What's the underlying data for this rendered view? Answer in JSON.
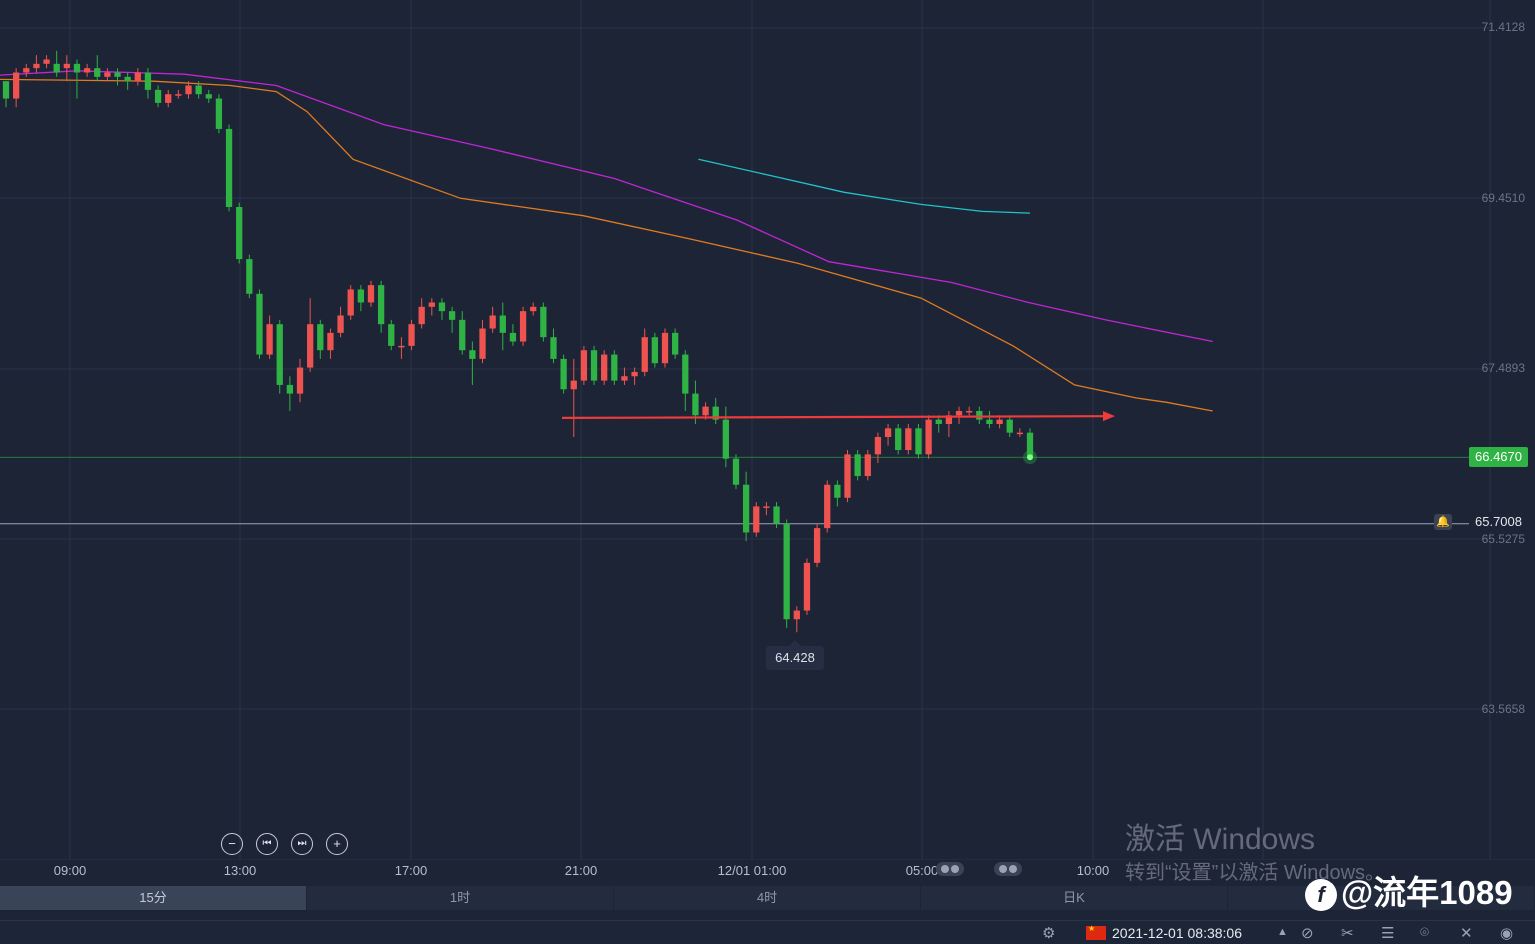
{
  "chart_data": {
    "type": "candlestick",
    "timeframe_active": "15分",
    "y_ticks": [
      "71.4128",
      "69.4510",
      "67.4893",
      "65.5275",
      "63.5658"
    ],
    "x_ticks": [
      "09:00",
      "13:00",
      "17:00",
      "21:00",
      "12/01 01:00",
      "05:00",
      "10:00"
    ],
    "current_price": "66.4670",
    "alert_price": "65.7008",
    "low_label": "64.428",
    "colors": {
      "up": "#ef5350",
      "down": "#26a69a",
      "green": "#2fb344",
      "ma_orange": "#e07b20",
      "ma_magenta": "#c026d3",
      "ma_cyan": "#22c3c9",
      "resistance": "#ef3b3b"
    },
    "candles": [
      [
        70.8,
        70.8,
        70.5,
        70.6
      ],
      [
        70.6,
        70.95,
        70.5,
        70.9
      ],
      [
        70.9,
        71.0,
        70.85,
        70.95
      ],
      [
        70.95,
        71.1,
        70.9,
        71.0
      ],
      [
        71.0,
        71.1,
        70.95,
        71.05
      ],
      [
        71.0,
        71.15,
        70.85,
        70.9
      ],
      [
        70.95,
        71.1,
        70.8,
        71.0
      ],
      [
        71.0,
        71.05,
        70.6,
        70.9
      ],
      [
        70.9,
        71.0,
        70.85,
        70.95
      ],
      [
        70.95,
        71.1,
        70.8,
        70.85
      ],
      [
        70.85,
        70.95,
        70.8,
        70.9
      ],
      [
        70.9,
        70.95,
        70.75,
        70.85
      ],
      [
        70.85,
        70.9,
        70.7,
        70.8
      ],
      [
        70.8,
        70.95,
        70.75,
        70.9
      ],
      [
        70.9,
        70.95,
        70.6,
        70.7
      ],
      [
        70.7,
        70.75,
        70.5,
        70.55
      ],
      [
        70.55,
        70.7,
        70.5,
        70.65
      ],
      [
        70.65,
        70.7,
        70.6,
        70.65
      ],
      [
        70.65,
        70.8,
        70.6,
        70.75
      ],
      [
        70.75,
        70.8,
        70.6,
        70.65
      ],
      [
        70.65,
        70.7,
        70.55,
        70.6
      ],
      [
        70.6,
        70.65,
        70.2,
        70.25
      ],
      [
        70.25,
        70.3,
        69.3,
        69.35
      ],
      [
        69.35,
        69.4,
        68.7,
        68.75
      ],
      [
        68.75,
        68.8,
        68.3,
        68.35
      ],
      [
        68.35,
        68.4,
        67.6,
        67.65
      ],
      [
        67.65,
        68.1,
        67.6,
        68.0
      ],
      [
        68.0,
        68.05,
        67.2,
        67.3
      ],
      [
        67.3,
        67.4,
        67.0,
        67.2
      ],
      [
        67.2,
        67.6,
        67.1,
        67.5
      ],
      [
        67.5,
        68.3,
        67.45,
        68.0
      ],
      [
        68.0,
        68.05,
        67.6,
        67.7
      ],
      [
        67.7,
        67.95,
        67.6,
        67.9
      ],
      [
        67.9,
        68.2,
        67.85,
        68.1
      ],
      [
        68.1,
        68.45,
        68.05,
        68.4
      ],
      [
        68.4,
        68.45,
        68.15,
        68.25
      ],
      [
        68.25,
        68.5,
        68.2,
        68.45
      ],
      [
        68.45,
        68.5,
        67.9,
        68.0
      ],
      [
        68.0,
        68.05,
        67.7,
        67.75
      ],
      [
        67.75,
        67.85,
        67.6,
        67.75
      ],
      [
        67.75,
        68.05,
        67.7,
        68.0
      ],
      [
        68.0,
        68.3,
        67.95,
        68.2
      ],
      [
        68.2,
        68.3,
        68.1,
        68.25
      ],
      [
        68.25,
        68.3,
        68.05,
        68.15
      ],
      [
        68.15,
        68.2,
        67.9,
        68.05
      ],
      [
        68.05,
        68.15,
        67.65,
        67.7
      ],
      [
        67.7,
        67.8,
        67.3,
        67.6
      ],
      [
        67.6,
        68.05,
        67.55,
        67.95
      ],
      [
        67.95,
        68.2,
        67.9,
        68.1
      ],
      [
        68.1,
        68.25,
        67.7,
        67.9
      ],
      [
        67.9,
        68.0,
        67.75,
        67.8
      ],
      [
        67.8,
        68.2,
        67.75,
        68.15
      ],
      [
        68.15,
        68.25,
        68.1,
        68.2
      ],
      [
        68.2,
        68.25,
        67.8,
        67.85
      ],
      [
        67.85,
        67.95,
        67.55,
        67.6
      ],
      [
        67.6,
        67.65,
        67.2,
        67.25
      ],
      [
        67.25,
        67.6,
        66.7,
        67.35
      ],
      [
        67.35,
        67.75,
        67.3,
        67.7
      ],
      [
        67.7,
        67.75,
        67.3,
        67.35
      ],
      [
        67.35,
        67.7,
        67.3,
        67.65
      ],
      [
        67.65,
        67.7,
        67.3,
        67.35
      ],
      [
        67.35,
        67.5,
        67.3,
        67.4
      ],
      [
        67.4,
        67.5,
        67.3,
        67.45
      ],
      [
        67.45,
        67.95,
        67.4,
        67.85
      ],
      [
        67.85,
        67.9,
        67.5,
        67.55
      ],
      [
        67.55,
        67.95,
        67.5,
        67.9
      ],
      [
        67.9,
        67.95,
        67.6,
        67.65
      ],
      [
        67.65,
        67.7,
        67.0,
        67.2
      ],
      [
        67.2,
        67.35,
        66.85,
        66.95
      ],
      [
        66.95,
        67.1,
        66.9,
        67.05
      ],
      [
        67.05,
        67.15,
        66.85,
        66.9
      ],
      [
        66.9,
        67.05,
        66.35,
        66.45
      ],
      [
        66.45,
        66.5,
        66.1,
        66.15
      ],
      [
        66.15,
        66.3,
        65.5,
        65.6
      ],
      [
        65.6,
        65.95,
        65.55,
        65.9
      ],
      [
        65.9,
        65.95,
        65.8,
        65.9
      ],
      [
        65.9,
        65.95,
        65.65,
        65.7
      ],
      [
        65.7,
        65.75,
        64.5,
        64.6
      ],
      [
        64.6,
        64.75,
        64.45,
        64.7
      ],
      [
        64.7,
        65.3,
        64.65,
        65.25
      ],
      [
        65.25,
        65.7,
        65.2,
        65.65
      ],
      [
        65.65,
        66.2,
        65.6,
        66.15
      ],
      [
        66.15,
        66.2,
        65.9,
        66.0
      ],
      [
        66.0,
        66.55,
        65.95,
        66.5
      ],
      [
        66.5,
        66.55,
        66.2,
        66.25
      ],
      [
        66.25,
        66.55,
        66.2,
        66.5
      ],
      [
        66.5,
        66.75,
        66.4,
        66.7
      ],
      [
        66.7,
        66.85,
        66.6,
        66.8
      ],
      [
        66.8,
        66.85,
        66.5,
        66.55
      ],
      [
        66.55,
        66.85,
        66.5,
        66.8
      ],
      [
        66.8,
        66.85,
        66.45,
        66.5
      ],
      [
        66.5,
        66.95,
        66.45,
        66.9
      ],
      [
        66.9,
        66.95,
        66.75,
        66.85
      ],
      [
        66.85,
        67.0,
        66.7,
        66.95
      ],
      [
        66.95,
        67.05,
        66.85,
        67.0
      ],
      [
        67.0,
        67.05,
        66.95,
        67.0
      ],
      [
        67.0,
        67.05,
        66.85,
        66.9
      ],
      [
        66.9,
        67.0,
        66.8,
        66.85
      ],
      [
        66.85,
        66.95,
        66.8,
        66.9
      ],
      [
        66.9,
        66.95,
        66.7,
        66.75
      ],
      [
        66.75,
        66.8,
        66.7,
        66.75
      ],
      [
        66.75,
        66.8,
        66.45,
        66.47
      ]
    ],
    "ma_orange": [
      [
        0,
        70.82
      ],
      [
        0.1,
        70.8
      ],
      [
        0.15,
        70.75
      ],
      [
        0.18,
        70.68
      ],
      [
        0.2,
        70.45
      ],
      [
        0.23,
        69.9
      ],
      [
        0.3,
        69.45
      ],
      [
        0.38,
        69.25
      ],
      [
        0.45,
        68.98
      ],
      [
        0.52,
        68.7
      ],
      [
        0.6,
        68.3
      ],
      [
        0.66,
        67.75
      ],
      [
        0.7,
        67.3
      ],
      [
        0.74,
        67.15
      ],
      [
        0.76,
        67.1
      ],
      [
        0.79,
        67.0
      ]
    ],
    "ma_magenta": [
      [
        0,
        70.87
      ],
      [
        0.05,
        70.92
      ],
      [
        0.12,
        70.88
      ],
      [
        0.18,
        70.75
      ],
      [
        0.25,
        70.3
      ],
      [
        0.32,
        70.02
      ],
      [
        0.4,
        69.68
      ],
      [
        0.48,
        69.2
      ],
      [
        0.54,
        68.72
      ],
      [
        0.62,
        68.48
      ],
      [
        0.67,
        68.25
      ],
      [
        0.72,
        68.05
      ],
      [
        0.79,
        67.8
      ]
    ],
    "ma_cyan": [
      [
        0.455,
        69.9
      ],
      [
        0.5,
        69.72
      ],
      [
        0.55,
        69.52
      ],
      [
        0.6,
        69.38
      ],
      [
        0.64,
        69.3
      ],
      [
        0.671,
        69.28
      ]
    ]
  },
  "controls": {
    "zoom_out": "−",
    "prev": "⏮",
    "next": "⏭",
    "zoom_in": "+"
  },
  "timeframes": [
    "15分",
    "1时",
    "4时",
    "日K"
  ],
  "status": {
    "datetime": "2021-12-01 08:38:06"
  },
  "watermark": {
    "line1": "激活 Windows",
    "line2": "转到“设置”以激活 Windows。"
  },
  "brand": {
    "text": "@流年1089"
  },
  "icons": [
    "settings-icon",
    "flag-cn-icon",
    "triangle-up-icon",
    "no-signal-icon",
    "tool-icon",
    "menu-icon",
    "camera-icon",
    "mute-icon",
    "eye-icon"
  ]
}
